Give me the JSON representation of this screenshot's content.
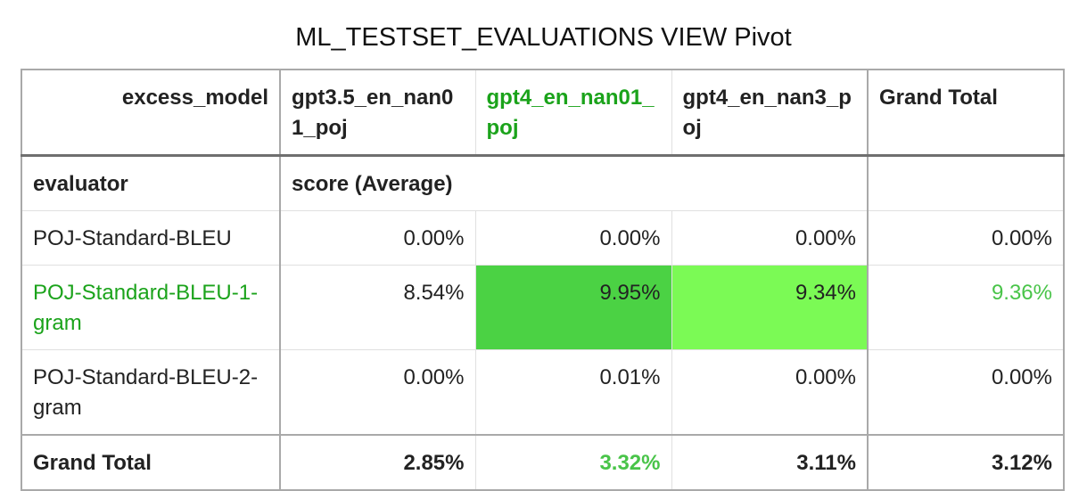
{
  "title": "ML_TESTSET_EVALUATIONS VIEW Pivot",
  "columns_label": "excess_model",
  "columns": [
    "gpt3.5_en_nan01_poj",
    "gpt4_en_nan01_poj",
    "gpt4_en_nan3_poj",
    "Grand Total"
  ],
  "row_label": "evaluator",
  "measure_label": "score (Average)",
  "rows": [
    {
      "evaluator": "POJ-Standard-BLEU",
      "values": [
        "0.00%",
        "0.00%",
        "0.00%",
        "0.00%"
      ]
    },
    {
      "evaluator": "POJ-Standard-BLEU-1-gram",
      "values": [
        "8.54%",
        "9.95%",
        "9.34%",
        "9.36%"
      ]
    },
    {
      "evaluator": "POJ-Standard-BLEU-2-gram",
      "values": [
        "0.00%",
        "0.01%",
        "0.00%",
        "0.00%"
      ]
    }
  ],
  "grand_total": {
    "label": "Grand Total",
    "values": [
      "2.85%",
      "3.32%",
      "3.11%",
      "3.12%"
    ]
  },
  "colors": {
    "highlight_text": "#1ba31b",
    "highlight_text_light": "#49c449",
    "cell_max": "#4bd244",
    "cell_high": "#7bfa55",
    "border": "#a9a9a9"
  }
}
